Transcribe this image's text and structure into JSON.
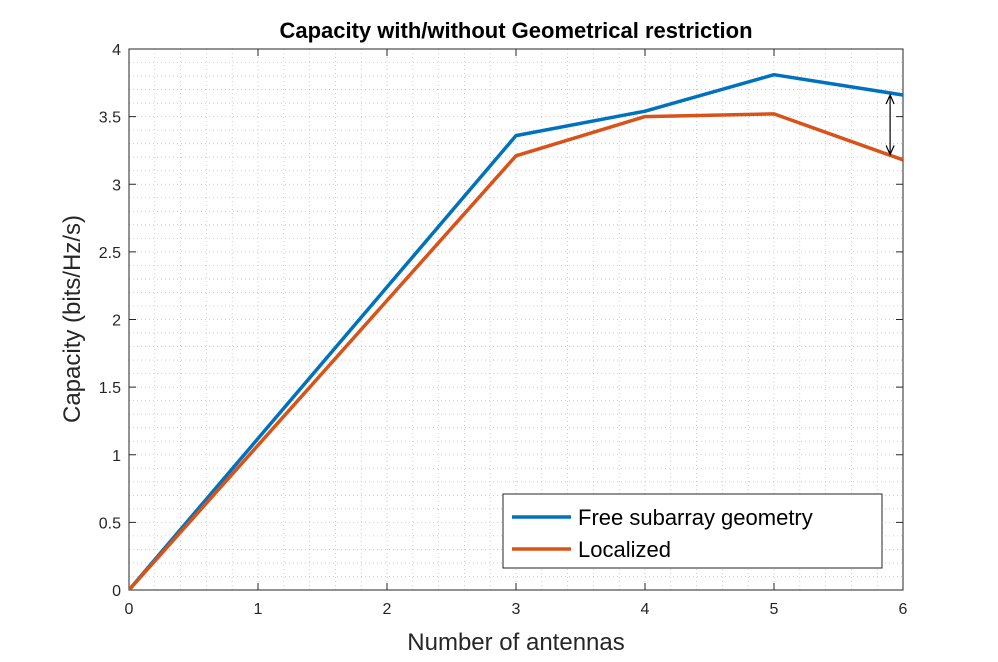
{
  "chart_data": {
    "type": "line",
    "title": "Capacity with/without Geometrical restriction",
    "xlabel": "Number of antennas",
    "ylabel": "Capacity (bits/Hz/s)",
    "xlim": [
      0,
      6
    ],
    "ylim": [
      0,
      4
    ],
    "xticks": [
      0,
      1,
      2,
      3,
      4,
      5,
      6
    ],
    "xtick_labels": [
      "0",
      "1",
      "2",
      "3",
      "4",
      "5",
      "6"
    ],
    "yticks": [
      0,
      0.5,
      1,
      1.5,
      2,
      2.5,
      3,
      3.5,
      4
    ],
    "ytick_labels": [
      "0",
      "0.5",
      "1",
      "1.5",
      "2",
      "2.5",
      "3",
      "3.5",
      "4"
    ],
    "grid": "minor dotted",
    "legend_position": "bottom-right",
    "x": [
      0,
      3,
      4,
      5,
      6
    ],
    "series": [
      {
        "name": "Free subarray geometry",
        "color": "#0072BD",
        "values": [
          0,
          3.36,
          3.54,
          3.81,
          3.66
        ]
      },
      {
        "name": "Localized",
        "color": "#D95319",
        "values": [
          0,
          3.21,
          3.5,
          3.52,
          3.18
        ]
      }
    ],
    "annotations": [
      {
        "type": "double-arrow",
        "x": 5.9,
        "y_from": 3.22,
        "y_to": 3.66,
        "color": "#000000"
      }
    ]
  }
}
